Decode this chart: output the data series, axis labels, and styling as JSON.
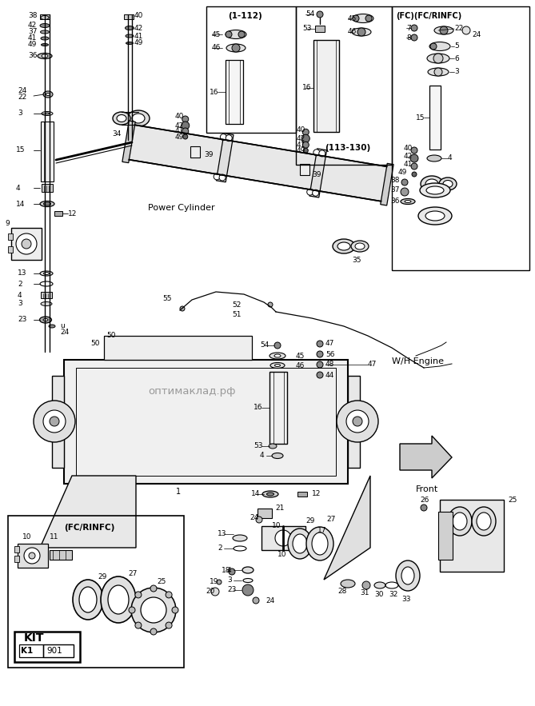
{
  "bg_color": "#ffffff",
  "watermark": "оптимаклад.рф",
  "labels": {
    "power_cylinder": "Power Cylinder",
    "wh_engine": "W/H Engine",
    "front": "Front",
    "box1_title": "(1-112)",
    "box2_title": "(113-130)",
    "box3_title": "(FC)(FC/RINFC)",
    "box4_title": "(FC/RINFC)",
    "kit_label": "KIT",
    "kit_number": "K1",
    "kit_value": "901"
  },
  "figsize": [
    6.69,
    8.83
  ],
  "dpi": 100
}
